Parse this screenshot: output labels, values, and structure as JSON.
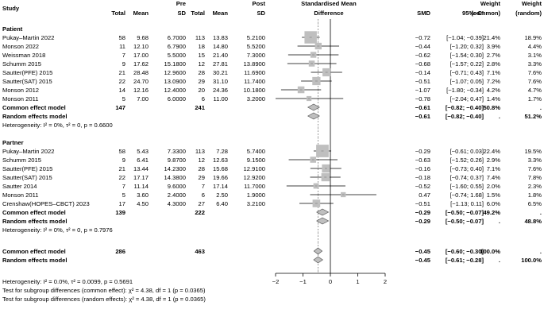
{
  "chart_data": {
    "type": "forest",
    "xlim": [
      -2,
      2
    ],
    "xticks": [
      "-2",
      "-1",
      "0",
      "1",
      "2"
    ],
    "x_label": "",
    "header": {
      "study": "Study",
      "total_pre": "Total",
      "mean_pre": "Mean",
      "sd_pre_top": "Pre",
      "sd_pre": "SD",
      "total_post": "Total",
      "mean_post": "Mean",
      "sd_post_top": "Post",
      "sd_post": "SD",
      "smd_top": "Standardised Mean",
      "smd_bottom": "Difference",
      "smd": "SMD",
      "ci": "95%–CI",
      "w_common_top": "Weight",
      "w_common": "(common)",
      "w_random_top": "Weight",
      "w_random": "(random)"
    },
    "groups": [
      {
        "name": "Patient",
        "studies": [
          {
            "study": "Pukay–Martin 2022",
            "n1": "58",
            "m1": "9.68",
            "sd1": "6.7000",
            "n2": "113",
            "m2": "13.83",
            "sd2": "5.2100",
            "smd": -0.72,
            "lo": -1.04,
            "hi": -0.39,
            "ci": "[−1.04; −0.39]",
            "wc": "21.4%",
            "wr": "18.9%"
          },
          {
            "study": "Monson 2022",
            "n1": "11",
            "m1": "12.10",
            "sd1": "6.7900",
            "n2": "18",
            "m2": "14.80",
            "sd2": "5.5200",
            "smd": -0.44,
            "lo": -1.2,
            "hi": 0.32,
            "ci": "[−1.20; 0.32]",
            "wc": "3.9%",
            "wr": "4.4%"
          },
          {
            "study": "Weissman 2018",
            "n1": "7",
            "m1": "17.00",
            "sd1": "5.5000",
            "n2": "15",
            "m2": "21.40",
            "sd2": "7.3000",
            "smd": -0.62,
            "lo": -1.54,
            "hi": 0.3,
            "ci": "[−1.54; 0.30]",
            "wc": "2.7%",
            "wr": "3.1%"
          },
          {
            "study": "Schumm 2015",
            "n1": "9",
            "m1": "17.62",
            "sd1": "15.1800",
            "n2": "12",
            "m2": "27.81",
            "sd2": "13.8900",
            "smd": -0.68,
            "lo": -1.57,
            "hi": 0.22,
            "ci": "[−1.57; 0.22]",
            "wc": "2.8%",
            "wr": "3.3%"
          },
          {
            "study": "Sautter(PFE) 2015",
            "n1": "21",
            "m1": "28.48",
            "sd1": "12.9600",
            "n2": "28",
            "m2": "30.21",
            "sd2": "11.6900",
            "smd": -0.14,
            "lo": -0.71,
            "hi": 0.43,
            "ci": "[−0.71; 0.43]",
            "wc": "7.1%",
            "wr": "7.6%"
          },
          {
            "study": "Sautter(SAT) 2015",
            "n1": "22",
            "m1": "24.70",
            "sd1": "13.0900",
            "n2": "29",
            "m2": "31.10",
            "sd2": "11.7400",
            "smd": -0.51,
            "lo": -1.07,
            "hi": 0.05,
            "ci": "[−1.07; 0.05]",
            "wc": "7.2%",
            "wr": "7.6%"
          },
          {
            "study": "Monson 2012",
            "n1": "14",
            "m1": "12.16",
            "sd1": "12.4000",
            "n2": "20",
            "m2": "24.36",
            "sd2": "10.1800",
            "smd": -1.07,
            "lo": -1.8,
            "hi": -0.34,
            "ci": "[−1.80; −0.34]",
            "wc": "4.2%",
            "wr": "4.7%"
          },
          {
            "study": "Monson 2011",
            "n1": "5",
            "m1": "7.00",
            "sd1": "6.0000",
            "n2": "6",
            "m2": "11.00",
            "sd2": "3.2000",
            "smd": -0.78,
            "lo": -2.04,
            "hi": 0.47,
            "ci": "[−2.04; 0.47]",
            "wc": "1.4%",
            "wr": "1.7%"
          }
        ],
        "common": {
          "label": "Common effect model",
          "n1": "147",
          "n2": "241",
          "smd": -0.61,
          "lo": -0.82,
          "hi": -0.4,
          "smd_text": "−0.61",
          "ci": "[−0.82; −0.40]",
          "wc": "50.8%",
          "wr": "."
        },
        "random": {
          "label": "Random effects model",
          "smd": -0.61,
          "lo": -0.82,
          "hi": -0.4,
          "smd_text": "−0.61",
          "ci": "[−0.82; −0.40]",
          "wc": ".",
          "wr": "51.2%"
        },
        "heterogeneity": "Heterogeneity: I² = 0%, τ² = 0, p = 0.6600"
      },
      {
        "name": "Partner",
        "studies": [
          {
            "study": "Pukay–Martin 2022",
            "n1": "58",
            "m1": "5.43",
            "sd1": "7.3300",
            "n2": "113",
            "m2": "7.28",
            "sd2": "5.7400",
            "smd": -0.29,
            "lo": -0.61,
            "hi": 0.03,
            "ci": "[−0.61; 0.03]",
            "wc": "22.4%",
            "wr": "19.5%"
          },
          {
            "study": "Schumm 2015",
            "n1": "9",
            "m1": "6.41",
            "sd1": "9.8700",
            "n2": "12",
            "m2": "12.63",
            "sd2": "9.1500",
            "smd": -0.63,
            "lo": -1.52,
            "hi": 0.26,
            "ci": "[−1.52; 0.26]",
            "wc": "2.9%",
            "wr": "3.3%"
          },
          {
            "study": "Sautter(PFE) 2015",
            "n1": "21",
            "m1": "13.44",
            "sd1": "14.2300",
            "n2": "28",
            "m2": "15.68",
            "sd2": "12.9100",
            "smd": -0.16,
            "lo": -0.73,
            "hi": 0.4,
            "ci": "[−0.73; 0.40]",
            "wc": "7.1%",
            "wr": "7.6%"
          },
          {
            "study": "Sautter(SAT) 2015",
            "n1": "22",
            "m1": "17.17",
            "sd1": "14.3800",
            "n2": "29",
            "m2": "19.66",
            "sd2": "12.9200",
            "smd": -0.18,
            "lo": -0.74,
            "hi": 0.37,
            "ci": "[−0.74; 0.37]",
            "wc": "7.4%",
            "wr": "7.8%"
          },
          {
            "study": "Sautter 2014",
            "n1": "7",
            "m1": "11.14",
            "sd1": "9.6000",
            "n2": "7",
            "m2": "17.14",
            "sd2": "11.7000",
            "smd": -0.52,
            "lo": -1.6,
            "hi": 0.55,
            "ci": "[−1.60; 0.55]",
            "wc": "2.0%",
            "wr": "2.3%"
          },
          {
            "study": "Monson 2011",
            "n1": "5",
            "m1": "3.60",
            "sd1": "2.4000",
            "n2": "6",
            "m2": "2.50",
            "sd2": "1.9000",
            "smd": 0.47,
            "lo": -0.74,
            "hi": 1.68,
            "ci": "[−0.74; 1.68]",
            "wc": "1.5%",
            "wr": "1.8%"
          },
          {
            "study": "Crenshaw(HOPES–CBCT) 2023",
            "n1": "17",
            "m1": "4.50",
            "sd1": "4.3000",
            "n2": "27",
            "m2": "6.40",
            "sd2": "3.2100",
            "smd": -0.51,
            "lo": -1.13,
            "hi": 0.11,
            "ci": "[−1.13; 0.11]",
            "wc": "6.0%",
            "wr": "6.5%"
          }
        ],
        "common": {
          "label": "Common effect model",
          "n1": "139",
          "n2": "222",
          "smd": -0.29,
          "lo": -0.5,
          "hi": -0.07,
          "smd_text": "−0.29",
          "ci": "[−0.50; −0.07]",
          "wc": "49.2%",
          "wr": "."
        },
        "random": {
          "label": "Random effects model",
          "smd": -0.29,
          "lo": -0.5,
          "hi": -0.07,
          "smd_text": "−0.29",
          "ci": "[−0.50; −0.07]",
          "wc": ".",
          "wr": "48.8%"
        },
        "heterogeneity": "Heterogeneity: I² = 0%, τ² = 0, p = 0.7976"
      }
    ],
    "overall": {
      "common": {
        "label": "Common effect model",
        "n1": "286",
        "n2": "463",
        "smd": -0.45,
        "lo": -0.6,
        "hi": -0.3,
        "smd_text": "−0.45",
        "ci": "[−0.60; −0.30]",
        "wc": "100.0%",
        "wr": "."
      },
      "random": {
        "label": "Random effects model",
        "smd": -0.45,
        "lo": -0.61,
        "hi": -0.28,
        "smd_text": "−0.45",
        "ci": "[−0.61; −0.28]",
        "wc": ".",
        "wr": "100.0%"
      }
    },
    "footer": [
      "Heterogeneity: I² = 0.0%, τ² = 0.0099, p = 0.5691",
      "Test for subgroup differences (common effect): χ² = 4.38, df = 1 (p = 0.0365)",
      "Test for subgroup differences (random effects): χ² = 4.38, df = 1 (p = 0.0365)"
    ],
    "colors": {
      "text": "#000000",
      "box": "#bfbfbf",
      "diamond": "#bfbfbf",
      "line": "#000000",
      "dashed": "#808080"
    }
  }
}
